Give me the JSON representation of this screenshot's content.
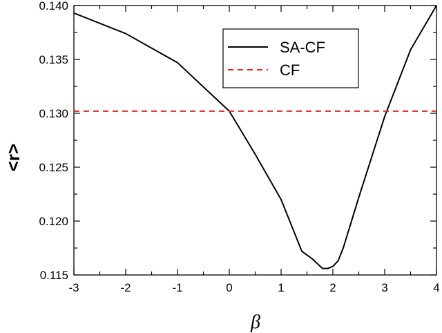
{
  "chart_data": {
    "type": "line",
    "xlabel": "β",
    "ylabel": "<r>",
    "xlim": [
      -3,
      4
    ],
    "ylim": [
      0.115,
      0.14
    ],
    "x_ticks": [
      -3,
      -2,
      -1,
      0,
      1,
      2,
      3,
      4
    ],
    "x_tick_labels": [
      "-3",
      "-2",
      "-1",
      "0",
      "1",
      "2",
      "3",
      "4"
    ],
    "y_ticks": [
      0.115,
      0.12,
      0.125,
      0.13,
      0.135,
      0.14
    ],
    "y_tick_labels": [
      "0.115",
      "0.120",
      "0.125",
      "0.130",
      "0.135",
      "0.140"
    ],
    "grid": false,
    "legend_position": "top-right",
    "series": [
      {
        "name": "SA-CF",
        "style": "solid",
        "color": "#000000",
        "x": [
          -3,
          -2,
          -1,
          0,
          0.5,
          1,
          1.4,
          1.6,
          1.8,
          1.9,
          2.0,
          2.1,
          2.2,
          2.5,
          3.0,
          3.5,
          4.0
        ],
        "y": [
          0.1393,
          0.1374,
          0.1347,
          0.1302,
          0.1262,
          0.122,
          0.1172,
          0.1165,
          0.1156,
          0.1156,
          0.1158,
          0.1163,
          0.1175,
          0.1222,
          0.1297,
          0.1359,
          0.14
        ]
      },
      {
        "name": "CF",
        "style": "dashed",
        "color": "#e8221e",
        "x": [
          -3,
          4
        ],
        "y": [
          0.1302,
          0.1302
        ]
      }
    ]
  }
}
